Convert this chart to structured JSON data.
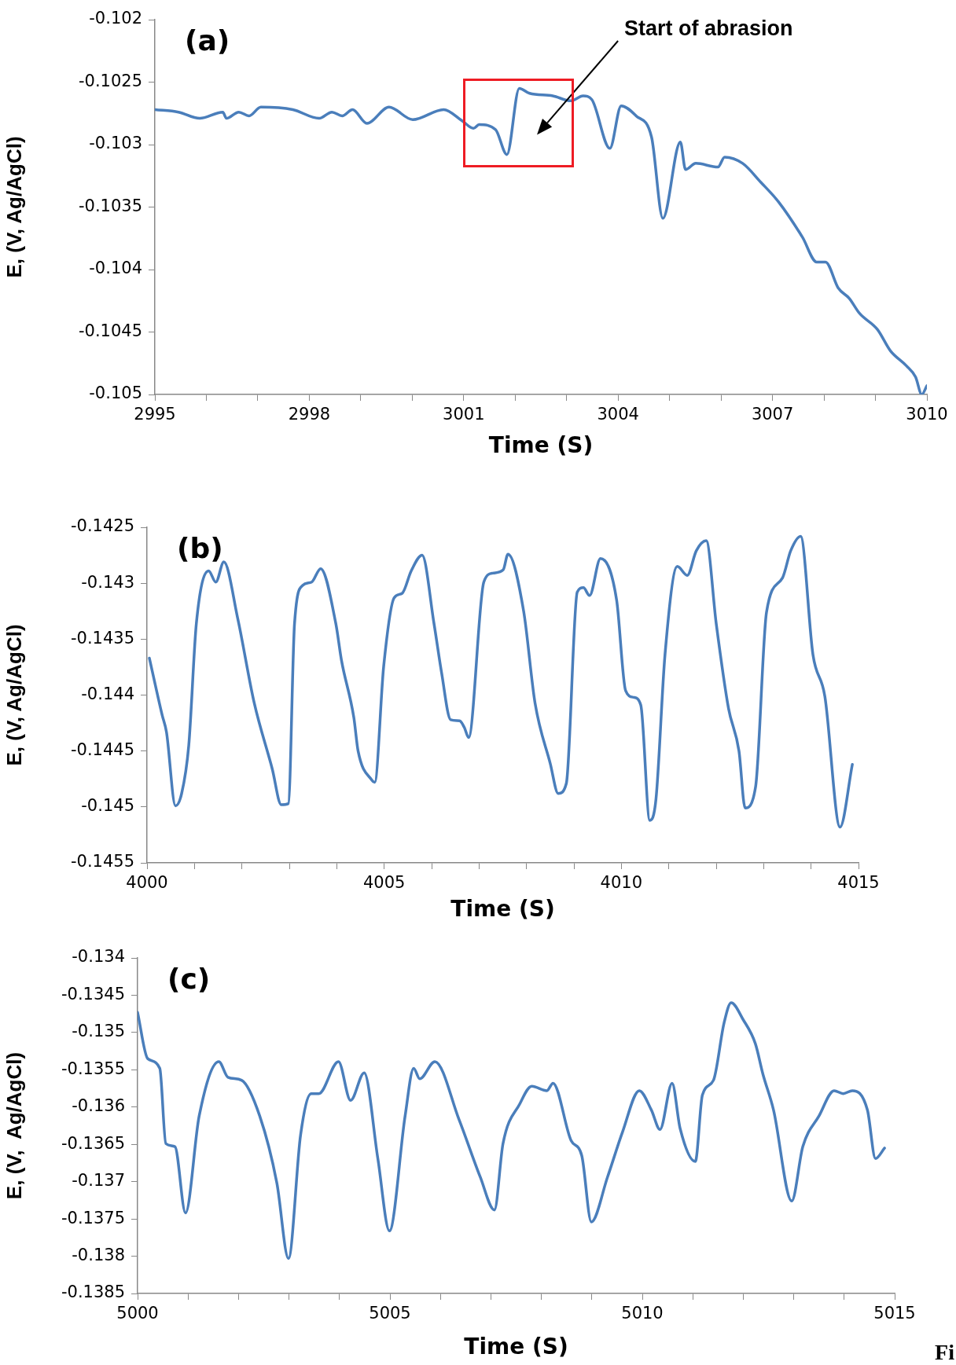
{
  "chart_data": [
    {
      "type": "line",
      "title": "(a)",
      "xlabel": "Time (S)",
      "ylabel": "E, (V, Ag/AgCl)",
      "xlim": [
        2995,
        3010
      ],
      "ylim": [
        -0.105,
        -0.102
      ],
      "xticks": [
        2995,
        {
          "value": 2996,
          "label": null
        },
        {
          "value": 2997,
          "label": null
        },
        2998,
        {
          "value": 2999,
          "label": null
        },
        {
          "value": 3000,
          "label": null
        },
        3001,
        {
          "value": 3002,
          "label": null
        },
        {
          "value": 3003,
          "label": null
        },
        3004,
        {
          "value": 3005,
          "label": null
        },
        {
          "value": 3006,
          "label": null
        },
        3007,
        {
          "value": 3008,
          "label": null
        },
        {
          "value": 3009,
          "label": null
        },
        3010
      ],
      "yticks": [
        -0.102,
        -0.1025,
        -0.103,
        -0.1035,
        -0.104,
        -0.1045,
        -0.105
      ],
      "grid": false,
      "legend": false,
      "marker": "none",
      "line_style": "solid",
      "annotations": [
        "Start of abrasion"
      ],
      "series": [
        {
          "color": "#4a7ebb",
          "x": [
            2995,
            2995.46,
            2995.87,
            2996.32,
            2996.39,
            2996.63,
            2996.83,
            2997.06,
            2997.68,
            2998.19,
            2998.44,
            2998.64,
            2998.84,
            2999.12,
            2999.55,
            3000.01,
            3000.61,
            3000.97,
            3001.19,
            3001.3,
            3001.62,
            3001.84,
            3002.08,
            3002.28,
            3002.73,
            3003.08,
            3003.32,
            3003.49,
            3003.84,
            3004.06,
            3004.35,
            3004.65,
            3004.87,
            3005.21,
            3005.31,
            3005.51,
            3005.94,
            3006.07,
            3006.42,
            3006.77,
            3007.12,
            3007.58,
            3007.86,
            3008.03,
            3008.28,
            3008.49,
            3008.69,
            3009.04,
            3009.29,
            3009.6,
            3009.78,
            3009.9,
            3010
          ],
          "values": [
            -0.10272,
            -0.10274,
            -0.10279,
            -0.10274,
            -0.10279,
            -0.10274,
            -0.10277,
            -0.1027,
            -0.10272,
            -0.10279,
            -0.10274,
            -0.10277,
            -0.10272,
            -0.10283,
            -0.1027,
            -0.1028,
            -0.10272,
            -0.10281,
            -0.10287,
            -0.10284,
            -0.10288,
            -0.10308,
            -0.10255,
            -0.10259,
            -0.10261,
            -0.10265,
            -0.10261,
            -0.10264,
            -0.10303,
            -0.10269,
            -0.10277,
            -0.10294,
            -0.10359,
            -0.10298,
            -0.1032,
            -0.10315,
            -0.10318,
            -0.1031,
            -0.10315,
            -0.1033,
            -0.10346,
            -0.10374,
            -0.10394,
            -0.10394,
            -0.10415,
            -0.10423,
            -0.10435,
            -0.10448,
            -0.10465,
            -0.10477,
            -0.10486,
            -0.105,
            -0.10493
          ]
        }
      ]
    },
    {
      "type": "line",
      "title": "(b)",
      "xlabel": "Time (S)",
      "ylabel": "E, (V, Ag/AgCl)",
      "xlim": [
        4000,
        4015
      ],
      "ylim": [
        -0.1455,
        -0.1425
      ],
      "xticks": [
        4000,
        {
          "value": 4001,
          "label": null
        },
        {
          "value": 4002,
          "label": null
        },
        {
          "value": 4003,
          "label": null
        },
        {
          "value": 4004,
          "label": null
        },
        4005,
        {
          "value": 4006,
          "label": null
        },
        {
          "value": 4007,
          "label": null
        },
        {
          "value": 4008,
          "label": null
        },
        {
          "value": 4009,
          "label": null
        },
        4010,
        {
          "value": 4011,
          "label": null
        },
        {
          "value": 4012,
          "label": null
        },
        {
          "value": 4013,
          "label": null
        },
        {
          "value": 4014,
          "label": null
        },
        4015
      ],
      "yticks": [
        -0.1425,
        -0.143,
        -0.1435,
        -0.144,
        -0.1445,
        -0.145,
        -0.1455
      ],
      "grid": false,
      "legend": false,
      "marker": "none",
      "line_style": "solid",
      "series": [
        {
          "color": "#4a7ebb",
          "x": [
            4000.05,
            4000.32,
            4000.41,
            4000.6,
            4000.73,
            4000.88,
            4001.04,
            4001.3,
            4001.45,
            4001.62,
            4001.91,
            4002.26,
            4002.64,
            4002.83,
            4002.98,
            4003.11,
            4003.28,
            4003.47,
            4003.66,
            4003.98,
            4004.1,
            4004.36,
            4004.45,
            4004.74,
            4004.8,
            4004.99,
            4005.21,
            4005.38,
            4005.57,
            4005.8,
            4006.05,
            4006.21,
            4006.4,
            4006.59,
            4006.69,
            4006.78,
            4007.1,
            4007.29,
            4007.51,
            4007.61,
            4007.94,
            4008.18,
            4008.5,
            4008.67,
            4008.84,
            4009.07,
            4009.2,
            4009.33,
            4009.56,
            4009.9,
            4010.09,
            4010.26,
            4010.41,
            4010.6,
            4010.73,
            4010.92,
            4011.18,
            4011.39,
            4011.58,
            4011.79,
            4012,
            4012.26,
            4012.48,
            4012.61,
            4012.83,
            4013.06,
            4013.4,
            4013.57,
            4013.78,
            4014.04,
            4014.29,
            4014.61,
            4014.87
          ],
          "values": [
            -0.14367,
            -0.14418,
            -0.14433,
            -0.14499,
            -0.14488,
            -0.14445,
            -0.14336,
            -0.14289,
            -0.14299,
            -0.14281,
            -0.14331,
            -0.14407,
            -0.14466,
            -0.14498,
            -0.14497,
            -0.14336,
            -0.14302,
            -0.14299,
            -0.14287,
            -0.14336,
            -0.14369,
            -0.1442,
            -0.1445,
            -0.14476,
            -0.14478,
            -0.14374,
            -0.14313,
            -0.14309,
            -0.14289,
            -0.14275,
            -0.14336,
            -0.1438,
            -0.14422,
            -0.14423,
            -0.14429,
            -0.14438,
            -0.14299,
            -0.14291,
            -0.14288,
            -0.14274,
            -0.14325,
            -0.14407,
            -0.14461,
            -0.14488,
            -0.14479,
            -0.14308,
            -0.14304,
            -0.14311,
            -0.14278,
            -0.14315,
            -0.14396,
            -0.14402,
            -0.14409,
            -0.14512,
            -0.14493,
            -0.14364,
            -0.14285,
            -0.14293,
            -0.14271,
            -0.14262,
            -0.14336,
            -0.14412,
            -0.1445,
            -0.14501,
            -0.14482,
            -0.14326,
            -0.14295,
            -0.14271,
            -0.14258,
            -0.14364,
            -0.14401,
            -0.14518,
            -0.14462
          ]
        }
      ]
    },
    {
      "type": "line",
      "title": "(c)",
      "xlabel": "Time (S)",
      "ylabel": "E, (V,  Ag/AgCl)",
      "xlim": [
        5000,
        5015
      ],
      "ylim": [
        -0.1385,
        -0.134
      ],
      "xticks": [
        5000,
        {
          "value": 5001,
          "label": null
        },
        {
          "value": 5002,
          "label": null
        },
        {
          "value": 5003,
          "label": null
        },
        {
          "value": 5004,
          "label": null
        },
        5005,
        {
          "value": 5006,
          "label": null
        },
        {
          "value": 5007,
          "label": null
        },
        {
          "value": 5008,
          "label": null
        },
        {
          "value": 5009,
          "label": null
        },
        5010,
        {
          "value": 5011,
          "label": null
        },
        {
          "value": 5012,
          "label": null
        },
        {
          "value": 5013,
          "label": null
        },
        {
          "value": 5014,
          "label": null
        },
        5015
      ],
      "yticks": [
        -0.134,
        -0.1345,
        -0.135,
        -0.1355,
        -0.136,
        -0.1365,
        -0.137,
        -0.1375,
        -0.138,
        -0.1385
      ],
      "grid": false,
      "legend": false,
      "marker": "none",
      "line_style": "solid",
      "annotations": [
        "Fi"
      ],
      "series": [
        {
          "color": "#4a7ebb",
          "x": [
            5000,
            5000.2,
            5000.44,
            5000.56,
            5000.74,
            5000.95,
            5001.22,
            5001.61,
            5001.79,
            5002.06,
            5002.42,
            5002.76,
            5002.99,
            5003.23,
            5003.44,
            5003.59,
            5003.98,
            5004.22,
            5004.49,
            5004.76,
            5004.99,
            5005.3,
            5005.47,
            5005.59,
            5005.89,
            5006.37,
            5006.79,
            5007.07,
            5007.24,
            5007.57,
            5007.81,
            5008.11,
            5008.23,
            5008.59,
            5008.8,
            5008.99,
            5009.31,
            5009.61,
            5009.94,
            5010.18,
            5010.35,
            5010.59,
            5010.75,
            5011.05,
            5011.19,
            5011.41,
            5011.62,
            5011.76,
            5012,
            5012.24,
            5012.39,
            5012.6,
            5012.96,
            5013.18,
            5013.5,
            5013.8,
            5013.98,
            5014.16,
            5014.46,
            5014.62,
            5014.8
          ],
          "values": [
            -0.13473,
            -0.13535,
            -0.13548,
            -0.13649,
            -0.13653,
            -0.13742,
            -0.13612,
            -0.13539,
            -0.1356,
            -0.13564,
            -0.13612,
            -0.13702,
            -0.13803,
            -0.13637,
            -0.13582,
            -0.13582,
            -0.13539,
            -0.13591,
            -0.13554,
            -0.13669,
            -0.13766,
            -0.13612,
            -0.13548,
            -0.13562,
            -0.13539,
            -0.13617,
            -0.13694,
            -0.13738,
            -0.13649,
            -0.13596,
            -0.13572,
            -0.13578,
            -0.13568,
            -0.13645,
            -0.13665,
            -0.13754,
            -0.13694,
            -0.13633,
            -0.13578,
            -0.13604,
            -0.1363,
            -0.13568,
            -0.13629,
            -0.13673,
            -0.13584,
            -0.13564,
            -0.13487,
            -0.1346,
            -0.13483,
            -0.13515,
            -0.13556,
            -0.13604,
            -0.13726,
            -0.13653,
            -0.13612,
            -0.13578,
            -0.13582,
            -0.13578,
            -0.13604,
            -0.13669,
            -0.13655
          ]
        }
      ]
    }
  ]
}
